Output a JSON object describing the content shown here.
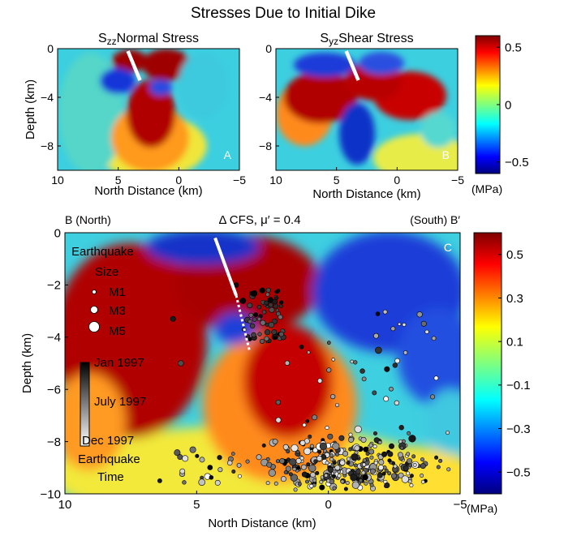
{
  "figure": {
    "title": "Stresses Due to Initial Dike"
  },
  "chart_data": [
    {
      "id": "A",
      "type": "heatmap",
      "title_prefix": "S",
      "title_sub": "zz",
      "title_suffix": "Normal Stress",
      "panel_letter": "A",
      "xlabel": "North Distance (km)",
      "ylabel": "Depth (km)",
      "xlim": [
        10,
        -5
      ],
      "ylim": [
        0,
        -10
      ],
      "xticks": [
        "10",
        "5",
        "0",
        "-5"
      ],
      "yticks": [
        "0",
        "-4",
        "-8"
      ],
      "dike": {
        "top": [
          4.2,
          -0.2
        ],
        "bottom": [
          3.2,
          -2.6
        ]
      }
    },
    {
      "id": "B",
      "type": "heatmap",
      "title_prefix": "S",
      "title_sub": "yz",
      "title_suffix": "Shear Stress",
      "panel_letter": "B",
      "xlabel": "North Distance (km)",
      "ylabel": "",
      "xlim": [
        10,
        -5
      ],
      "ylim": [
        0,
        -10
      ],
      "xticks": [
        "10",
        "5",
        "0",
        "-5"
      ],
      "yticks": [
        "0",
        "-4",
        "-8"
      ],
      "dike": {
        "top": [
          4.2,
          -0.2
        ],
        "bottom": [
          3.2,
          -2.6
        ]
      },
      "colorbar": {
        "ticks": [
          "0.5",
          "0",
          "-0.5"
        ],
        "unit": "(MPa)",
        "range": [
          -0.6,
          0.6
        ]
      }
    },
    {
      "id": "C",
      "type": "heatmap",
      "title": "Δ CFS,  μ′ = 0.4",
      "left_label": "B (North)",
      "right_label": "(South) B′",
      "panel_letter": "C",
      "xlabel": "North Distance (km)",
      "ylabel": "Depth (km)",
      "xlim": [
        10,
        -5
      ],
      "ylim": [
        0,
        -10
      ],
      "xticks": [
        "10",
        "5",
        "0",
        "-5"
      ],
      "yticks": [
        "0",
        "-2",
        "-4",
        "-6",
        "-8",
        "-10"
      ],
      "dike": {
        "top": [
          4.3,
          -0.2
        ],
        "bottom": [
          3.5,
          -2.4
        ]
      },
      "dike_extension": {
        "top": [
          3.5,
          -2.4
        ],
        "bottom": [
          3.0,
          -4.5
        ]
      },
      "colorbar": {
        "ticks": [
          "0.5",
          "0.3",
          "0.1",
          "-0.1",
          "-0.3",
          "-0.5"
        ],
        "unit": "(MPa)",
        "range": [
          -0.6,
          0.6
        ]
      },
      "size_legend": {
        "title": "Earthquake",
        "subtitle": "Size",
        "items": [
          {
            "label": "M1",
            "magnitude": 1
          },
          {
            "label": "M3",
            "magnitude": 3
          },
          {
            "label": "M5",
            "magnitude": 5
          }
        ]
      },
      "time_legend": {
        "labels": [
          "Jan 1997",
          "July 1997",
          "Dec 1997"
        ],
        "caption_line1": "Earthquake",
        "caption_line2": "Time"
      }
    }
  ]
}
